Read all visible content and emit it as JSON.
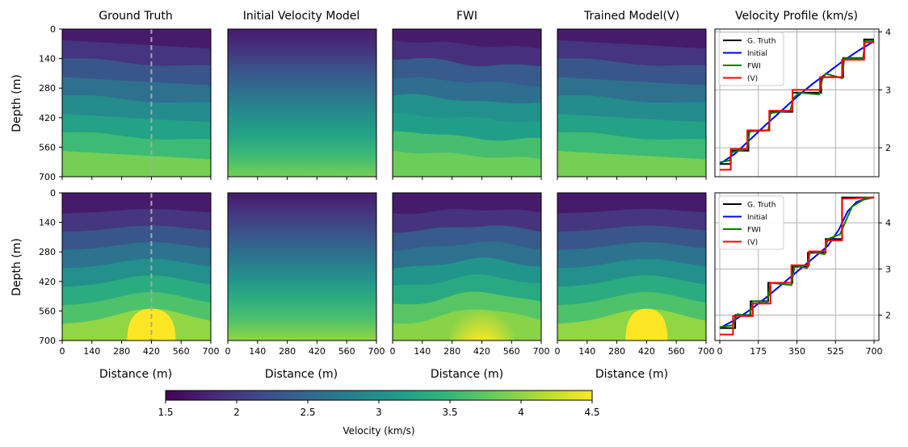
{
  "chart_data": {
    "type": "heatmap",
    "columns": [
      {
        "key": "gt",
        "title": "Ground Truth"
      },
      {
        "key": "init",
        "title": "Initial Velocity Model"
      },
      {
        "key": "fwi",
        "title": "FWI"
      },
      {
        "key": "trained",
        "title": "Trained Model(V)"
      },
      {
        "key": "profile",
        "title": "Velocity Profile (km/s)"
      }
    ],
    "heatmap_axes": {
      "xlabel": "Distance (m)",
      "ylabel": "Depth (m)",
      "xticks": [
        0,
        140,
        280,
        420,
        560,
        700
      ],
      "yticks": [
        0,
        140,
        280,
        420,
        560,
        700
      ],
      "xlim": [
        0,
        700
      ],
      "ylim": [
        700,
        0
      ],
      "profile_line_x": 420
    },
    "colorbar": {
      "label": "Velocity (km/s)",
      "colormap": "viridis",
      "min": 1.5,
      "max": 4.5,
      "ticks": [
        {
          "value": 1.5,
          "label": "1.5"
        },
        {
          "value": 2.0,
          "label": "2"
        },
        {
          "value": 2.5,
          "label": "2.5"
        },
        {
          "value": 3.0,
          "label": "3"
        },
        {
          "value": 3.5,
          "label": "3.5"
        },
        {
          "value": 4.0,
          "label": "4"
        },
        {
          "value": 4.5,
          "label": "4.5"
        }
      ]
    },
    "rows": [
      {
        "model": "layered",
        "layer_velocities": [
          1.72,
          1.95,
          2.3,
          2.62,
          2.95,
          3.22,
          3.55,
          3.87
        ],
        "profile": {
          "type": "line",
          "xlim": [
            0,
            700
          ],
          "ylim": [
            1.5,
            4.05
          ],
          "yticks": [
            2,
            3,
            4
          ],
          "xticks": [],
          "legend": [
            "G. Truth",
            "Initial",
            "FWI",
            "(V)"
          ],
          "series": [
            {
              "name": "G. Truth",
              "color": "#000000",
              "x": [
                0,
                50,
                50,
                130,
                130,
                225,
                225,
                330,
                330,
                460,
                460,
                560,
                560,
                655,
                655,
                700
              ],
              "y": [
                1.72,
                1.72,
                1.95,
                1.95,
                2.3,
                2.3,
                2.62,
                2.62,
                2.95,
                2.95,
                3.22,
                3.22,
                3.55,
                3.55,
                3.87,
                3.87
              ]
            },
            {
              "name": "Initial",
              "color": "#0000ff",
              "x": [
                0,
                70,
                140,
                210,
                280,
                350,
                420,
                490,
                560,
                630,
                700
              ],
              "y": [
                1.72,
                1.9,
                2.15,
                2.4,
                2.64,
                2.88,
                3.1,
                3.3,
                3.5,
                3.68,
                3.84
              ]
            },
            {
              "name": "FWI",
              "color": "#008000",
              "x": [
                0,
                45,
                55,
                125,
                135,
                220,
                230,
                320,
                335,
                360,
                450,
                465,
                480,
                555,
                565,
                650,
                660,
                700
              ],
              "y": [
                1.75,
                1.78,
                1.92,
                1.98,
                2.28,
                2.3,
                2.6,
                2.64,
                2.86,
                2.95,
                2.92,
                3.18,
                3.28,
                3.2,
                3.55,
                3.55,
                3.85,
                3.85
              ]
            },
            {
              "name": "(V)",
              "color": "#ff0000",
              "x": [
                0,
                50,
                50,
                125,
                125,
                225,
                225,
                330,
                330,
                455,
                455,
                555,
                555,
                655,
                655,
                700
              ],
              "y": [
                1.62,
                1.62,
                1.98,
                1.98,
                2.3,
                2.3,
                2.64,
                2.64,
                3.0,
                3.0,
                3.22,
                3.22,
                3.52,
                3.52,
                3.82,
                3.82
              ]
            }
          ]
        }
      },
      {
        "model": "anticline",
        "layer_velocities": [
          1.72,
          1.98,
          2.3,
          2.65,
          3.0,
          3.35,
          3.65,
          4.0
        ],
        "dome": {
          "center_x": 420,
          "top_depth": 550,
          "velocity": 4.5
        },
        "profile": {
          "type": "line",
          "xlim": [
            0,
            700
          ],
          "ylim": [
            1.45,
            4.65
          ],
          "yticks": [
            2,
            3,
            4
          ],
          "xticks": [
            0,
            175,
            350,
            525,
            700
          ],
          "legend": [
            "G. Truth",
            "Initial",
            "FWI",
            "(V)"
          ],
          "series": [
            {
              "name": "G. Truth",
              "color": "#000000",
              "x": [
                0,
                70,
                70,
                140,
                140,
                220,
                220,
                330,
                330,
                400,
                400,
                480,
                480,
                555,
                555,
                700
              ],
              "y": [
                1.72,
                1.72,
                2.0,
                2.0,
                2.3,
                2.3,
                2.7,
                2.7,
                3.05,
                3.05,
                3.35,
                3.35,
                3.65,
                3.65,
                4.55,
                4.55
              ]
            },
            {
              "name": "Initial",
              "color": "#0000ff",
              "x": [
                0,
                70,
                140,
                210,
                280,
                350,
                420,
                490,
                540,
                580,
                620,
                660,
                700
              ],
              "y": [
                1.72,
                1.9,
                2.12,
                2.38,
                2.66,
                2.94,
                3.22,
                3.5,
                3.85,
                4.25,
                4.45,
                4.52,
                4.55
              ]
            },
            {
              "name": "FWI",
              "color": "#008000",
              "x": [
                0,
                60,
                80,
                135,
                150,
                215,
                230,
                325,
                340,
                395,
                410,
                475,
                490,
                545,
                600,
                650,
                700
              ],
              "y": [
                1.74,
                1.78,
                2.02,
                1.98,
                2.3,
                2.28,
                2.7,
                2.65,
                3.08,
                3.02,
                3.38,
                3.32,
                3.65,
                3.75,
                4.35,
                4.5,
                4.55
              ]
            },
            {
              "name": "(V)",
              "color": "#ff0000",
              "x": [
                0,
                60,
                60,
                150,
                150,
                230,
                230,
                325,
                325,
                405,
                405,
                480,
                480,
                555,
                555,
                700
              ],
              "y": [
                1.58,
                1.58,
                1.98,
                1.98,
                2.25,
                2.25,
                2.7,
                2.7,
                3.08,
                3.08,
                3.38,
                3.38,
                3.62,
                3.62,
                4.52,
                4.55
              ]
            }
          ]
        }
      }
    ]
  }
}
